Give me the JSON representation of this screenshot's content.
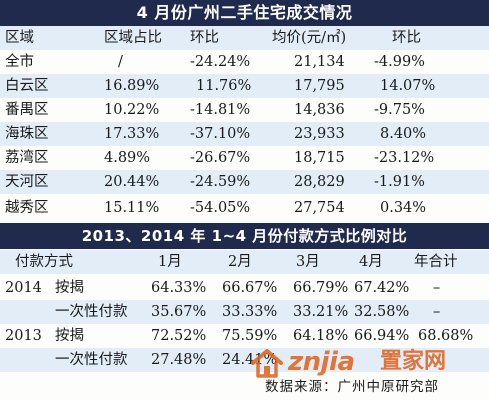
{
  "table1": {
    "title": "4 月份广州二手住宅成交情况",
    "headers": [
      "区域",
      "区域占比",
      "环比",
      "均价(元/㎡)",
      "环比"
    ],
    "rows": [
      {
        "district": "全市",
        "share": "/",
        "mom": "-24.24%",
        "avg_price": "21,134",
        "price_mom": "-4.99%"
      },
      {
        "district": "白云区",
        "share": "16.89%",
        "mom": "11.76%",
        "avg_price": "17,795",
        "price_mom": "14.07%"
      },
      {
        "district": "番禺区",
        "share": "10.22%",
        "mom": "-14.81%",
        "avg_price": "14,836",
        "price_mom": "-9.75%"
      },
      {
        "district": "海珠区",
        "share": "17.33%",
        "mom": "-37.10%",
        "avg_price": "23,933",
        "price_mom": "8.40%"
      },
      {
        "district": "荔湾区",
        "share": "4.89%",
        "mom": "-26.67%",
        "avg_price": "18,715",
        "price_mom": "-23.12%"
      },
      {
        "district": "天河区",
        "share": "20.44%",
        "mom": "-24.59%",
        "avg_price": "28,829",
        "price_mom": "-1.91%"
      },
      {
        "district": "越秀区",
        "share": "15.11%",
        "mom": "-54.05%",
        "avg_price": "27,754",
        "price_mom": "0.34%"
      }
    ]
  },
  "table2": {
    "title": "2013、2014 年 1~4 月份付款方式比例对比",
    "headers": [
      "付款方式",
      "1月",
      "2月",
      "3月",
      "4月",
      "年合计"
    ],
    "rows": [
      {
        "year": "2014",
        "type": "按揭",
        "m1": "64.33%",
        "m2": "66.67%",
        "m3": "66.79%",
        "m4": "67.42%",
        "total": "–"
      },
      {
        "year": "",
        "type": "一次性付款",
        "m1": "35.67%",
        "m2": "33.33%",
        "m3": "33.21%",
        "m4": "32.58%",
        "total": "–"
      },
      {
        "year": "2013",
        "type": "按揭",
        "m1": "72.52%",
        "m2": "75.59%",
        "m3": "64.18%",
        "m4": "66.94%",
        "total": "68.68%"
      },
      {
        "year": "",
        "type": "一次性付款",
        "m1": "27.48%",
        "m2": "24.41%",
        "m3": "",
        "m4": "",
        "total": ""
      }
    ]
  },
  "source": "数据来源：广州中原研究部",
  "watermark": {
    "latin": "znjia",
    "chinese": "置家网",
    "logo_icon": "house-logo-icon"
  },
  "colors": {
    "title_bg": "#1f2a4d",
    "row_shade": "#e3edf7",
    "watermark": "#e0601a"
  }
}
